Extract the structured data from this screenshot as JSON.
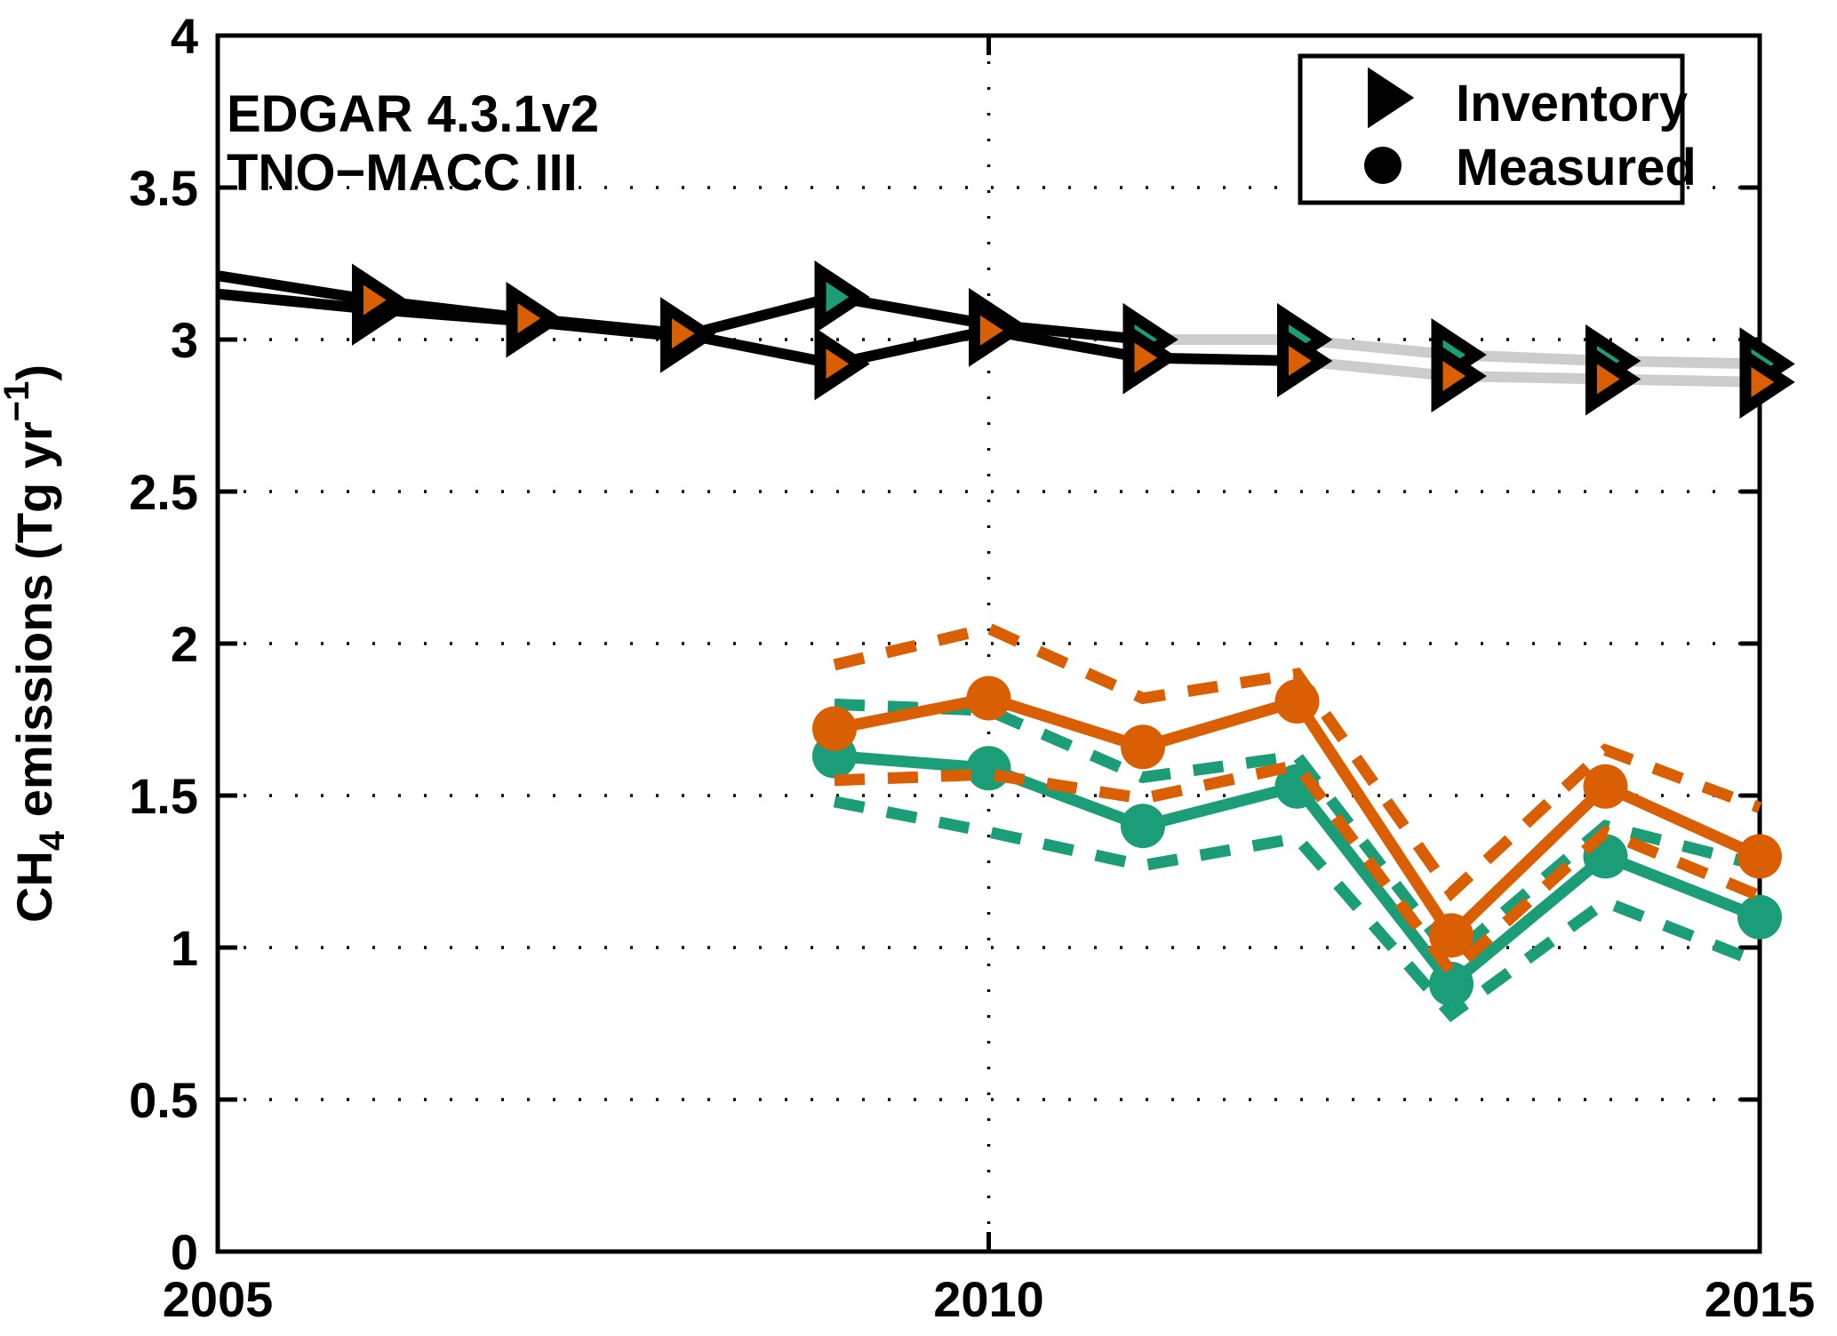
{
  "figure": {
    "background": "#ffffff",
    "annotations": [
      {
        "text": "EDGAR 4.3.1v2",
        "color": "#1b9e77"
      },
      {
        "text": "TNO−MACC III",
        "color": "#d95f02"
      }
    ],
    "legend": {
      "items": [
        {
          "marker": "triangle-right-icon",
          "label": "Inventory"
        },
        {
          "marker": "circle-icon",
          "label": "Measured"
        }
      ]
    },
    "ylabel": {
      "parts": [
        {
          "text": "CH"
        },
        {
          "text": "4"
        },
        {
          "text": " emissions (Tg yr"
        },
        {
          "text": "−1"
        },
        {
          "text": ")"
        }
      ]
    }
  },
  "chart_data": {
    "type": "line",
    "title": "",
    "xlabel": "",
    "ylabel": "CH4 emissions (Tg yr−1)",
    "xlim": [
      2005,
      2015
    ],
    "ylim": [
      0,
      4
    ],
    "xticks": [
      {
        "value": 2005,
        "label": "2005"
      },
      {
        "value": 2010,
        "label": "2010"
      },
      {
        "value": 2015,
        "label": "2015"
      }
    ],
    "yticks": [
      {
        "value": 0,
        "label": "0"
      },
      {
        "value": 0.5,
        "label": "0.5"
      },
      {
        "value": 1,
        "label": "1"
      },
      {
        "value": 1.5,
        "label": "1.5"
      },
      {
        "value": 2,
        "label": "2"
      },
      {
        "value": 2.5,
        "label": "2.5"
      },
      {
        "value": 3,
        "label": "3"
      },
      {
        "value": 3.5,
        "label": "3.5"
      },
      {
        "value": 4,
        "label": "4"
      }
    ],
    "grid": {
      "style": "dotted",
      "horizontal_at": [
        0.5,
        1,
        1.5,
        2,
        2.5,
        3,
        3.5
      ],
      "vertical_at": [
        2010
      ]
    },
    "colors": {
      "edgar": "#1b9e77",
      "tno": "#d95f02",
      "inventory_line": "#000000",
      "inventory_line_extrapolated": "#cccccc"
    },
    "series": [
      {
        "id": "edgar-inventory",
        "name": "EDGAR 4.3.1v2 Inventory",
        "group": "Inventory",
        "marker": "triangle-right",
        "marker_from": 2006,
        "color": "#1b9e77",
        "line_color": "#000000",
        "extrapolated_line_color": "#cccccc",
        "extrapolated_from": 2011,
        "x": [
          2005,
          2006,
          2007,
          2008,
          2009,
          2010,
          2011,
          2012,
          2013,
          2014,
          2015
        ],
        "y": [
          3.15,
          3.1,
          3.06,
          3.01,
          3.14,
          3.05,
          3.0,
          3.0,
          2.95,
          2.93,
          2.92
        ]
      },
      {
        "id": "tno-inventory",
        "name": "TNO−MACC III Inventory",
        "group": "Inventory",
        "marker": "triangle-right",
        "marker_from": 2006,
        "color": "#d95f02",
        "line_color": "#000000",
        "extrapolated_line_color": "#cccccc",
        "extrapolated_from": 2012,
        "x": [
          2005,
          2006,
          2007,
          2008,
          2009,
          2010,
          2011,
          2012,
          2013,
          2014,
          2015
        ],
        "y": [
          3.21,
          3.13,
          3.07,
          3.02,
          2.92,
          3.03,
          2.94,
          2.93,
          2.88,
          2.87,
          2.86
        ]
      },
      {
        "id": "edgar-measured",
        "name": "EDGAR 4.3.1v2 Measured",
        "group": "Measured",
        "marker": "circle",
        "color": "#1b9e77",
        "x": [
          2009,
          2010,
          2011,
          2012,
          2013,
          2014,
          2015
        ],
        "y": [
          1.63,
          1.59,
          1.4,
          1.53,
          0.88,
          1.3,
          1.1
        ],
        "upper": [
          1.8,
          1.78,
          1.56,
          1.63,
          0.97,
          1.4,
          1.27
        ],
        "lower": [
          1.48,
          1.38,
          1.27,
          1.36,
          0.78,
          1.15,
          0.95
        ]
      },
      {
        "id": "tno-measured",
        "name": "TNO−MACC III Measured",
        "group": "Measured",
        "marker": "circle",
        "color": "#d95f02",
        "x": [
          2009,
          2010,
          2011,
          2012,
          2013,
          2014,
          2015
        ],
        "y": [
          1.72,
          1.82,
          1.66,
          1.81,
          1.04,
          1.53,
          1.3
        ],
        "upper": [
          1.93,
          2.05,
          1.82,
          1.9,
          1.18,
          1.65,
          1.46
        ],
        "lower": [
          1.55,
          1.57,
          1.49,
          1.6,
          0.92,
          1.38,
          1.17
        ]
      }
    ]
  }
}
